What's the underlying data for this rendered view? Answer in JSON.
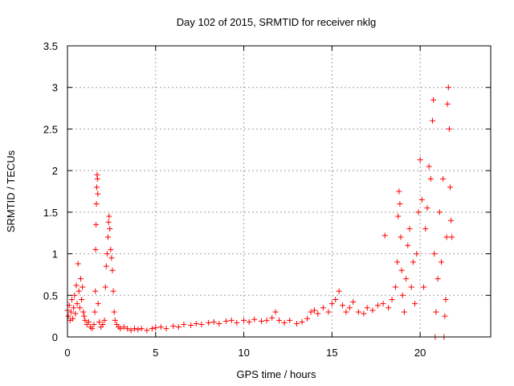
{
  "chart_data": {
    "type": "scatter",
    "title": "Day 102 of 2015, SRMTID for receiver nklg",
    "xlabel": "GPS time / hours",
    "ylabel": "SRMTID / TECUs",
    "xlim": [
      0,
      24
    ],
    "ylim": [
      0,
      3.5
    ],
    "x_ticks": [
      0,
      5,
      10,
      15,
      20
    ],
    "y_ticks": [
      0,
      0.5,
      1,
      1.5,
      2,
      2.5,
      3,
      3.5
    ],
    "x_tick_labels": [
      "0",
      "5",
      "10",
      "15",
      "20"
    ],
    "y_tick_labels": [
      "0",
      "0.5",
      "1",
      "1.5",
      "2",
      "2.5",
      "3",
      "3.5"
    ],
    "grid": true,
    "marker": "+",
    "color": "#ff0000",
    "series": [
      {
        "name": "SRMTID",
        "points": [
          [
            0.0,
            0.32
          ],
          [
            0.05,
            0.25
          ],
          [
            0.1,
            0.38
          ],
          [
            0.15,
            0.2
          ],
          [
            0.2,
            0.3
          ],
          [
            0.25,
            0.45
          ],
          [
            0.3,
            0.22
          ],
          [
            0.35,
            0.35
          ],
          [
            0.4,
            0.5
          ],
          [
            0.45,
            0.28
          ],
          [
            0.5,
            0.62
          ],
          [
            0.55,
            0.4
          ],
          [
            0.6,
            0.88
          ],
          [
            0.65,
            0.55
          ],
          [
            0.7,
            0.35
          ],
          [
            0.75,
            0.7
          ],
          [
            0.8,
            0.45
          ],
          [
            0.85,
            0.6
          ],
          [
            0.9,
            0.3
          ],
          [
            0.95,
            0.25
          ],
          [
            1.0,
            0.2
          ],
          [
            1.1,
            0.15
          ],
          [
            1.2,
            0.18
          ],
          [
            1.3,
            0.12
          ],
          [
            1.4,
            0.1
          ],
          [
            1.5,
            0.15
          ],
          [
            1.55,
            0.3
          ],
          [
            1.58,
            0.55
          ],
          [
            1.6,
            1.05
          ],
          [
            1.62,
            1.35
          ],
          [
            1.64,
            1.6
          ],
          [
            1.66,
            1.8
          ],
          [
            1.68,
            1.95
          ],
          [
            1.7,
            1.9
          ],
          [
            1.72,
            1.72
          ],
          [
            1.74,
            0.4
          ],
          [
            1.8,
            0.18
          ],
          [
            1.9,
            0.12
          ],
          [
            2.0,
            0.15
          ],
          [
            2.1,
            0.2
          ],
          [
            2.15,
            0.6
          ],
          [
            2.2,
            0.85
          ],
          [
            2.25,
            1.0
          ],
          [
            2.3,
            1.2
          ],
          [
            2.33,
            1.38
          ],
          [
            2.36,
            1.45
          ],
          [
            2.4,
            1.3
          ],
          [
            2.45,
            1.05
          ],
          [
            2.5,
            0.95
          ],
          [
            2.55,
            0.8
          ],
          [
            2.6,
            0.55
          ],
          [
            2.65,
            0.3
          ],
          [
            2.7,
            0.2
          ],
          [
            2.8,
            0.15
          ],
          [
            2.9,
            0.12
          ],
          [
            3.0,
            0.1
          ],
          [
            3.2,
            0.12
          ],
          [
            3.4,
            0.1
          ],
          [
            3.6,
            0.08
          ],
          [
            3.8,
            0.1
          ],
          [
            4.0,
            0.09
          ],
          [
            4.2,
            0.1
          ],
          [
            4.5,
            0.08
          ],
          [
            4.8,
            0.1
          ],
          [
            5.0,
            0.11
          ],
          [
            5.3,
            0.12
          ],
          [
            5.6,
            0.1
          ],
          [
            6.0,
            0.13
          ],
          [
            6.3,
            0.12
          ],
          [
            6.6,
            0.15
          ],
          [
            7.0,
            0.14
          ],
          [
            7.3,
            0.16
          ],
          [
            7.6,
            0.15
          ],
          [
            8.0,
            0.17
          ],
          [
            8.3,
            0.18
          ],
          [
            8.6,
            0.16
          ],
          [
            9.0,
            0.19
          ],
          [
            9.3,
            0.2
          ],
          [
            9.6,
            0.17
          ],
          [
            10.0,
            0.2
          ],
          [
            10.3,
            0.18
          ],
          [
            10.6,
            0.21
          ],
          [
            11.0,
            0.19
          ],
          [
            11.3,
            0.2
          ],
          [
            11.6,
            0.23
          ],
          [
            11.8,
            0.3
          ],
          [
            12.0,
            0.2
          ],
          [
            12.3,
            0.17
          ],
          [
            12.6,
            0.2
          ],
          [
            13.0,
            0.16
          ],
          [
            13.3,
            0.18
          ],
          [
            13.6,
            0.22
          ],
          [
            13.8,
            0.3
          ],
          [
            14.0,
            0.32
          ],
          [
            14.2,
            0.28
          ],
          [
            14.5,
            0.35
          ],
          [
            14.8,
            0.3
          ],
          [
            15.0,
            0.4
          ],
          [
            15.2,
            0.45
          ],
          [
            15.4,
            0.55
          ],
          [
            15.6,
            0.38
          ],
          [
            15.8,
            0.3
          ],
          [
            16.0,
            0.35
          ],
          [
            16.2,
            0.42
          ],
          [
            16.5,
            0.3
          ],
          [
            16.8,
            0.28
          ],
          [
            17.0,
            0.35
          ],
          [
            17.3,
            0.32
          ],
          [
            17.6,
            0.38
          ],
          [
            17.9,
            0.4
          ],
          [
            18.0,
            1.22
          ],
          [
            18.2,
            0.35
          ],
          [
            18.4,
            0.45
          ],
          [
            18.6,
            0.6
          ],
          [
            18.7,
            0.9
          ],
          [
            18.75,
            1.45
          ],
          [
            18.8,
            1.75
          ],
          [
            18.85,
            1.6
          ],
          [
            18.9,
            1.2
          ],
          [
            18.95,
            0.8
          ],
          [
            19.0,
            0.5
          ],
          [
            19.1,
            0.3
          ],
          [
            19.2,
            0.7
          ],
          [
            19.3,
            1.1
          ],
          [
            19.4,
            1.3
          ],
          [
            19.5,
            0.6
          ],
          [
            19.6,
            0.9
          ],
          [
            19.7,
            0.4
          ],
          [
            19.8,
            1.0
          ],
          [
            19.9,
            1.5
          ],
          [
            20.0,
            2.13
          ],
          [
            20.1,
            1.65
          ],
          [
            20.2,
            0.6
          ],
          [
            20.3,
            1.3
          ],
          [
            20.4,
            1.55
          ],
          [
            20.5,
            2.05
          ],
          [
            20.6,
            1.9
          ],
          [
            20.7,
            2.6
          ],
          [
            20.75,
            2.85
          ],
          [
            20.8,
            1.0
          ],
          [
            20.9,
            0.3
          ],
          [
            21.0,
            0.7
          ],
          [
            21.1,
            1.5
          ],
          [
            21.2,
            0.9
          ],
          [
            21.3,
            1.9
          ],
          [
            21.4,
            0.25
          ],
          [
            21.45,
            0.45
          ],
          [
            21.5,
            1.2
          ],
          [
            21.55,
            2.8
          ],
          [
            21.6,
            3.0
          ],
          [
            21.65,
            2.5
          ],
          [
            21.7,
            1.8
          ],
          [
            21.75,
            1.4
          ],
          [
            21.8,
            1.2
          ],
          [
            20.85,
            0.0
          ],
          [
            21.35,
            0.0
          ]
        ]
      }
    ]
  }
}
